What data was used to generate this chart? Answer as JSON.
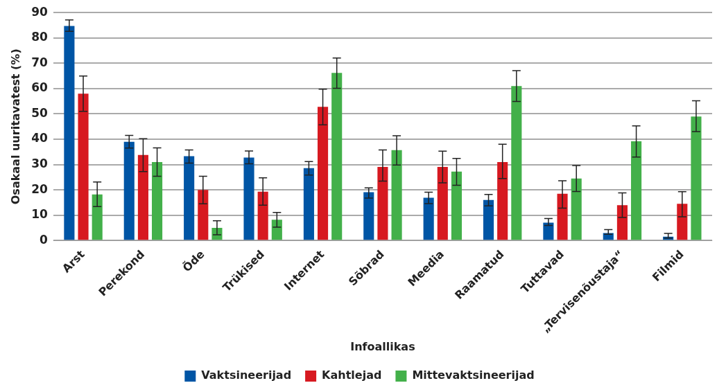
{
  "chart_data": {
    "type": "bar",
    "xlabel": "Infoallikas",
    "ylabel": "Osakaal uuritavatest (%)",
    "categories": [
      "Arst",
      "Perekond",
      "Õde",
      "Trükised",
      "Internet",
      "Sõbrad",
      "Meedia",
      "Raamatud",
      "Tuttavad",
      "„Tervisenõustaja“",
      "Filmid"
    ],
    "series": [
      {
        "name": "Vaktsineerijad",
        "color": "#0055a5",
        "values": [
          84.7,
          39,
          33.3,
          32.8,
          28.6,
          19.1,
          16.9,
          16.0,
          7.1,
          3.0,
          1.5
        ],
        "errors": [
          [
            82.6,
            87.1
          ],
          [
            36.5,
            41.5
          ],
          [
            30.6,
            35.8
          ],
          [
            30.3,
            35.4
          ],
          [
            25.9,
            31.2
          ],
          [
            16.8,
            20.8
          ],
          [
            14.6,
            19.1
          ],
          [
            13.7,
            18.2
          ],
          [
            6.0,
            8.7
          ],
          [
            2.5,
            4.3
          ],
          [
            1.0,
            2.8
          ]
        ]
      },
      {
        "name": "Kahtlejad",
        "color": "#d71920",
        "values": [
          58,
          33.8,
          20,
          19.3,
          52.8,
          29.1,
          29.1,
          31.0,
          18.5,
          14.0,
          14.5
        ],
        "errors": [
          [
            51,
            65
          ],
          [
            27.2,
            40.2
          ],
          [
            14.5,
            25.4
          ],
          [
            14,
            24.8
          ],
          [
            45.7,
            59.8
          ],
          [
            23.5,
            35.8
          ],
          [
            22.8,
            35.3
          ],
          [
            24.5,
            38.0
          ],
          [
            12.8,
            23.6
          ],
          [
            9.1,
            18.8
          ],
          [
            9.4,
            19.3
          ]
        ]
      },
      {
        "name": "Mittevaktsineerijad",
        "color": "#43b04a",
        "values": [
          18.2,
          31,
          5,
          8.2,
          66.2,
          35.7,
          27.2,
          61.0,
          24.5,
          39.2,
          49.0
        ],
        "errors": [
          [
            13.4,
            23.1
          ],
          [
            25.4,
            36.6
          ],
          [
            2.3,
            7.8
          ],
          [
            5.3,
            11.1
          ],
          [
            60.1,
            72.1
          ],
          [
            29.8,
            41.4
          ],
          [
            21.8,
            32.4
          ],
          [
            54.9,
            67.1
          ],
          [
            19.4,
            29.6
          ],
          [
            33.0,
            45.3
          ],
          [
            43.0,
            55.2
          ]
        ]
      }
    ],
    "ylim": [
      0,
      90
    ],
    "yticks": [
      0,
      10,
      20,
      30,
      40,
      50,
      60,
      70,
      80,
      90
    ],
    "grid": "y",
    "legend": "bottom"
  }
}
